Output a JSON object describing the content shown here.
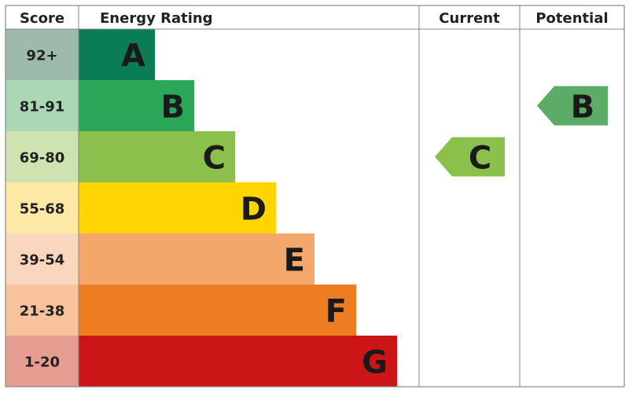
{
  "chart_data": {
    "type": "bar",
    "headers": {
      "score": "Score",
      "rating": "Energy Rating",
      "current": "Current",
      "potential": "Potential"
    },
    "bands": [
      {
        "letter": "A",
        "score": "92+",
        "color": "#0b7d55",
        "score_color": "#9dbbab"
      },
      {
        "letter": "B",
        "score": "81-91",
        "color": "#2ca75a",
        "score_color": "#acd7b4"
      },
      {
        "letter": "C",
        "score": "69-80",
        "color": "#8cc04d",
        "score_color": "#cfe3b1"
      },
      {
        "letter": "D",
        "score": "55-68",
        "color": "#ffd500",
        "score_color": "#fde8a6"
      },
      {
        "letter": "E",
        "score": "39-54",
        "color": "#f4a76a",
        "score_color": "#f9d7bf"
      },
      {
        "letter": "F",
        "score": "21-38",
        "color": "#ee7d22",
        "score_color": "#f8c39c"
      },
      {
        "letter": "G",
        "score": "1-20",
        "color": "#cc1517",
        "score_color": "#e59d92"
      }
    ],
    "current": {
      "rating": "C",
      "color": "#8cc04d"
    },
    "potential": {
      "rating": "B",
      "color": "#5aac66"
    }
  }
}
